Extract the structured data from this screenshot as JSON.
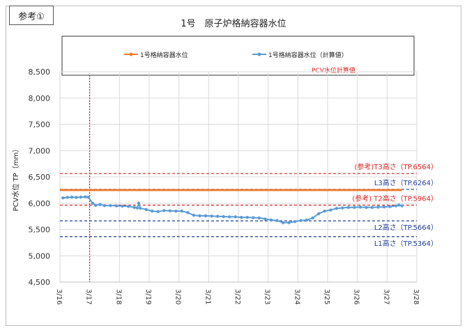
{
  "ref_label": "参考①",
  "chart_data": {
    "type": "line",
    "title": "1号　原子炉格納容器水位",
    "xlabel": "",
    "ylabel": "PCV水位 TP（mm）",
    "ylim": [
      4500,
      8500
    ],
    "y_ticks": [
      "4,500",
      "5,000",
      "5,500",
      "6,000",
      "6,500",
      "7,000",
      "7,500",
      "8,000",
      "8,500"
    ],
    "x_range": [
      16,
      28
    ],
    "x_ticks": [
      "3/16",
      "3/17",
      "3/18",
      "3/19",
      "3/20",
      "3/21",
      "3/22",
      "3/23",
      "3/24",
      "3/25",
      "3/26",
      "3/27",
      "3/28"
    ],
    "grid": true,
    "legend": {
      "position": "top",
      "entries": [
        "1号格納容器水位",
        "1号格納容器水位（計算値）"
      ],
      "note": "PCV水位計算値"
    },
    "colors": {
      "measured": "#ed7d31",
      "calculated": "#5b9bd5",
      "red_line": "#e02020",
      "blue_line": "#1f3d9a",
      "marker_line": "#c00000"
    },
    "series": [
      {
        "name": "1号格納容器水位",
        "x": [
          16,
          27.5
        ],
        "y": [
          6250,
          6250
        ]
      },
      {
        "name": "1号格納容器水位（計算値）",
        "x": [
          16.1,
          16.25,
          16.4,
          16.55,
          16.7,
          16.85,
          16.95,
          17.1,
          17.2,
          17.35,
          17.5,
          17.7,
          17.9,
          18.1,
          18.3,
          18.5,
          18.6,
          18.65,
          18.7,
          18.9,
          19.1,
          19.3,
          19.5,
          19.7,
          19.9,
          20.1,
          20.3,
          20.5,
          20.7,
          20.9,
          21.1,
          21.3,
          21.5,
          21.7,
          21.9,
          22.1,
          22.3,
          22.5,
          22.7,
          22.9,
          23.1,
          23.3,
          23.5,
          23.7,
          23.9,
          24.1,
          24.3,
          24.5,
          24.7,
          24.9,
          25.1,
          25.3,
          25.5,
          25.7,
          25.9,
          26.1,
          26.3,
          26.5,
          26.7,
          26.9,
          27.1,
          27.3,
          27.4,
          27.5
        ],
        "y": [
          6100,
          6110,
          6115,
          6110,
          6115,
          6120,
          6115,
          6000,
          5960,
          5975,
          5955,
          5955,
          5950,
          5945,
          5940,
          5920,
          5910,
          6000,
          5905,
          5880,
          5850,
          5840,
          5860,
          5855,
          5850,
          5850,
          5820,
          5770,
          5760,
          5760,
          5755,
          5750,
          5745,
          5740,
          5740,
          5730,
          5730,
          5725,
          5720,
          5700,
          5680,
          5670,
          5630,
          5630,
          5650,
          5670,
          5680,
          5720,
          5800,
          5850,
          5870,
          5900,
          5910,
          5920,
          5920,
          5925,
          5920,
          5920,
          5925,
          5930,
          5935,
          5950,
          5965,
          5950
        ]
      }
    ],
    "reference_lines": [
      {
        "label": "(参考)T3高さ（TP.6564）",
        "y": 6564,
        "color": "red"
      },
      {
        "label": "L3高さ（TP.6264）",
        "y": 6264,
        "color": "blue"
      },
      {
        "label": "(参考) T2高さ（TP.5964）",
        "y": 5964,
        "color": "red"
      },
      {
        "label": "L2高さ（TP.5664）",
        "y": 5664,
        "color": "blue"
      },
      {
        "label": "L1高さ（TP.5364）",
        "y": 5364,
        "color": "blue"
      }
    ],
    "vertical_marker_x": 17
  }
}
